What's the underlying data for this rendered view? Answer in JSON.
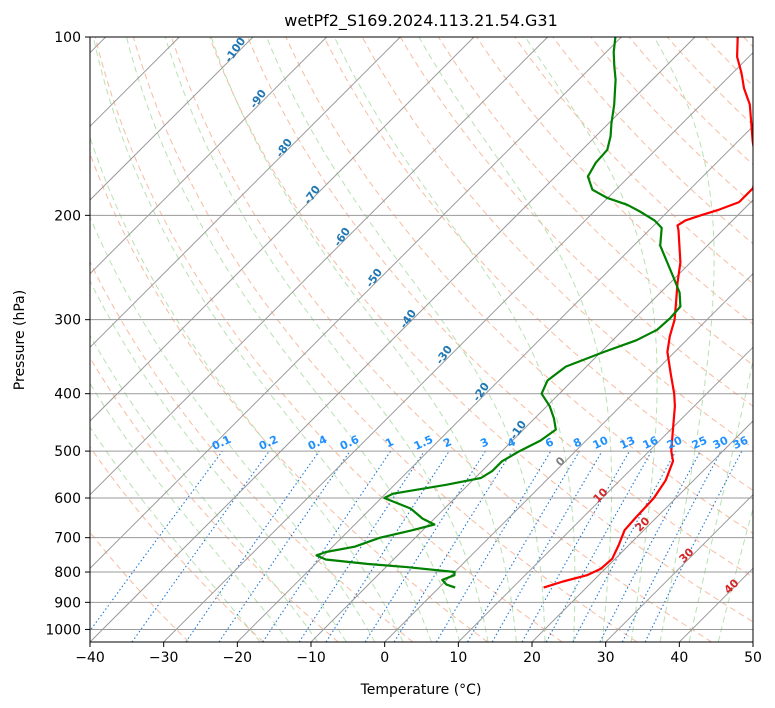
{
  "chart_data": {
    "type": "line",
    "subtype": "skew-T log-P diagram",
    "title": "wetPf2_S169.2024.113.21.54.G31",
    "xlabel": "Temperature (°C)",
    "ylabel": "Pressure (hPa)",
    "xlim": [
      -40,
      50
    ],
    "ylim": [
      1050,
      100
    ],
    "y_scale": "log",
    "grid": true,
    "x_ticks": [
      -40,
      -30,
      -20,
      -10,
      0,
      10,
      20,
      30,
      40,
      50
    ],
    "x_tick_labels": [
      "−40",
      "−30",
      "−20",
      "−10",
      "0",
      "10",
      "20",
      "30",
      "40",
      "50"
    ],
    "y_ticks": [
      100,
      200,
      300,
      400,
      500,
      600,
      700,
      800,
      900,
      1000
    ],
    "y_tick_labels": [
      "100",
      "200",
      "300",
      "400",
      "500",
      "600",
      "700",
      "800",
      "900",
      "1000"
    ],
    "series": [
      {
        "role": "temperature",
        "color": "#ff0000",
        "points": [
          [
            850,
            14.2
          ],
          [
            830,
            16.0
          ],
          [
            810,
            18.4
          ],
          [
            790,
            19.4
          ],
          [
            760,
            19.6
          ],
          [
            720,
            18.6
          ],
          [
            680,
            17.4
          ],
          [
            650,
            17.2
          ],
          [
            600,
            17.0
          ],
          [
            560,
            16.2
          ],
          [
            520,
            14.6
          ],
          [
            500,
            13.0
          ],
          [
            470,
            11.0
          ],
          [
            450,
            9.6
          ],
          [
            420,
            7.4
          ],
          [
            400,
            5.6
          ],
          [
            370,
            2.4
          ],
          [
            340,
            -1.0
          ],
          [
            320,
            -2.8
          ],
          [
            300,
            -4.4
          ],
          [
            280,
            -6.6
          ],
          [
            260,
            -9.0
          ],
          [
            240,
            -11.4
          ],
          [
            225,
            -13.8
          ],
          [
            212,
            -16.0
          ],
          [
            208,
            -16.8
          ],
          [
            204,
            -16.4
          ],
          [
            200,
            -15.0
          ],
          [
            196,
            -13.4
          ],
          [
            190,
            -11.6
          ],
          [
            180,
            -11.6
          ],
          [
            170,
            -13.2
          ],
          [
            160,
            -15.4
          ],
          [
            150,
            -18.0
          ],
          [
            140,
            -20.6
          ],
          [
            130,
            -23.4
          ],
          [
            122,
            -26.4
          ],
          [
            115,
            -28.8
          ],
          [
            108,
            -31.6
          ],
          [
            100,
            -34.2
          ]
        ]
      },
      {
        "role": "dewpoint",
        "color": "#008000",
        "points": [
          [
            850,
            2.2
          ],
          [
            840,
            0.6
          ],
          [
            825,
            -0.6
          ],
          [
            810,
            0.4
          ],
          [
            800,
            0.0
          ],
          [
            785,
            -7.0
          ],
          [
            775,
            -13.0
          ],
          [
            762,
            -19.2
          ],
          [
            750,
            -21.0
          ],
          [
            740,
            -20.2
          ],
          [
            725,
            -17.0
          ],
          [
            700,
            -14.8
          ],
          [
            680,
            -11.4
          ],
          [
            665,
            -9.2
          ],
          [
            650,
            -11.6
          ],
          [
            625,
            -14.6
          ],
          [
            600,
            -19.6
          ],
          [
            590,
            -19.0
          ],
          [
            570,
            -13.0
          ],
          [
            555,
            -9.2
          ],
          [
            540,
            -8.6
          ],
          [
            520,
            -8.6
          ],
          [
            500,
            -7.6
          ],
          [
            480,
            -6.2
          ],
          [
            460,
            -5.6
          ],
          [
            440,
            -7.4
          ],
          [
            420,
            -9.6
          ],
          [
            400,
            -12.4
          ],
          [
            380,
            -13.4
          ],
          [
            360,
            -12.8
          ],
          [
            340,
            -9.6
          ],
          [
            325,
            -6.8
          ],
          [
            312,
            -5.4
          ],
          [
            298,
            -5.2
          ],
          [
            285,
            -5.4
          ],
          [
            270,
            -7.4
          ],
          [
            255,
            -10.2
          ],
          [
            240,
            -13.2
          ],
          [
            225,
            -16.4
          ],
          [
            210,
            -18.6
          ],
          [
            204,
            -20.6
          ],
          [
            197,
            -23.8
          ],
          [
            192,
            -26.4
          ],
          [
            187,
            -30.0
          ],
          [
            181,
            -33.2
          ],
          [
            172,
            -35.6
          ],
          [
            163,
            -36.4
          ],
          [
            155,
            -36.6
          ],
          [
            147,
            -38.0
          ],
          [
            140,
            -39.6
          ],
          [
            130,
            -41.8
          ],
          [
            118,
            -45.0
          ],
          [
            112,
            -47.0
          ],
          [
            106,
            -49.0
          ],
          [
            100,
            -50.8
          ]
        ]
      }
    ],
    "moist_adiabat_labels": [
      "-100",
      "-90",
      "-80",
      "-70",
      "-60",
      "-50",
      "-40",
      "-30",
      "-20",
      "-10"
    ],
    "mixing_ratio_labels": [
      "0.1",
      "0.2",
      "0.4",
      "0.6",
      "1",
      "1.5",
      "2",
      "3",
      "4",
      "6",
      "8",
      "10",
      "13",
      "16",
      "20",
      "25",
      "30",
      "36"
    ],
    "dry_adiabat_labels": [
      "0",
      "10",
      "20",
      "30",
      "40"
    ],
    "colors": {
      "temperature": "#ff0000",
      "dewpoint": "#008000",
      "isotherm": "#9a9a9a",
      "isobar": "#9a9a9a",
      "dry_adiabat": "#f4a582",
      "moist_adiabat": "#a6d9a0",
      "mixing_ratio": "#1f78d1",
      "moist_label": "#1f77b4",
      "mixing_label": "#1e90ff",
      "dry_label_red": "#d62728",
      "dry_label_grey": "#808080"
    }
  }
}
